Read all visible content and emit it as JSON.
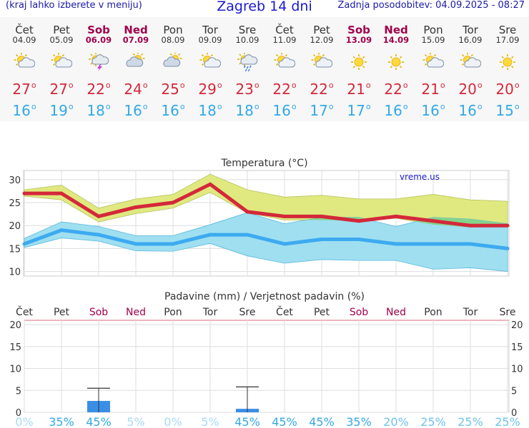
{
  "header": {
    "menu_hint": "(kraj lahko izberete v meniju)",
    "title": "Zagreb 14 dni",
    "updated": "Zadnja posodobitev: 04.09.2025 - 08:27"
  },
  "days": [
    {
      "name": "Čet",
      "date": "04.09",
      "weekend": false,
      "icon": "sun-cloud-icon",
      "tmax": "27",
      "tmin": "16"
    },
    {
      "name": "Pet",
      "date": "05.09",
      "weekend": false,
      "icon": "sun-cloud-icon",
      "tmax": "27",
      "tmin": "19"
    },
    {
      "name": "Sob",
      "date": "06.09",
      "weekend": true,
      "icon": "sun-cloud-thunder-icon",
      "tmax": "22",
      "tmin": "18"
    },
    {
      "name": "Ned",
      "date": "07.09",
      "weekend": true,
      "icon": "cloudy-sun-icon",
      "tmax": "24",
      "tmin": "16"
    },
    {
      "name": "Pon",
      "date": "08.09",
      "weekend": false,
      "icon": "cloudy-sun-icon",
      "tmax": "25",
      "tmin": "16"
    },
    {
      "name": "Tor",
      "date": "09.09",
      "weekend": false,
      "icon": "sun-cloud-icon",
      "tmax": "29",
      "tmin": "18"
    },
    {
      "name": "Sre",
      "date": "10.09",
      "weekend": false,
      "icon": "sun-cloud-rain-icon",
      "tmax": "23",
      "tmin": "18"
    },
    {
      "name": "Čet",
      "date": "11.09",
      "weekend": false,
      "icon": "sun-cloud-icon",
      "tmax": "22",
      "tmin": "16"
    },
    {
      "name": "Pet",
      "date": "12.09",
      "weekend": false,
      "icon": "sun-cloud-icon",
      "tmax": "22",
      "tmin": "17"
    },
    {
      "name": "Sob",
      "date": "13.09",
      "weekend": true,
      "icon": "sun-icon",
      "tmax": "21",
      "tmin": "17"
    },
    {
      "name": "Ned",
      "date": "14.09",
      "weekend": true,
      "icon": "sun-icon",
      "tmax": "22",
      "tmin": "16"
    },
    {
      "name": "Pon",
      "date": "15.09",
      "weekend": false,
      "icon": "sun-cloud-icon",
      "tmax": "21",
      "tmin": "16"
    },
    {
      "name": "Tor",
      "date": "16.09",
      "weekend": false,
      "icon": "sun-cloud-icon",
      "tmax": "20",
      "tmin": "16"
    },
    {
      "name": "Sre",
      "date": "17.09",
      "weekend": false,
      "icon": "sun-icon",
      "tmax": "20",
      "tmin": "15"
    }
  ],
  "chart_data": [
    {
      "type": "line",
      "title": "Temperatura (°C)",
      "watermark": "vreme.us",
      "categories": [
        "04.09",
        "05.09",
        "06.09",
        "07.09",
        "08.09",
        "09.09",
        "10.09",
        "11.09",
        "12.09",
        "13.09",
        "14.09",
        "15.09",
        "16.09",
        "17.09"
      ],
      "ylim": [
        9,
        32
      ],
      "yticks": [
        10,
        15,
        20,
        25,
        30
      ],
      "grid": true,
      "series": [
        {
          "values": [
            27,
            27,
            22,
            24,
            25,
            29,
            23,
            22,
            22,
            21,
            22,
            21,
            20,
            20
          ],
          "color": "#d4283a"
        },
        {
          "values": [
            16,
            19,
            18,
            16,
            16,
            18,
            18,
            16,
            17,
            17,
            16,
            16,
            16,
            15
          ],
          "color": "#3daaf0"
        }
      ],
      "bands": [
        {
          "upper": [
            27.8,
            28.8,
            23.8,
            25.8,
            26.8,
            31.2,
            27.8,
            26.2,
            26.6,
            25.8,
            25.8,
            26.8,
            25.6,
            25.3
          ],
          "lower": [
            26.4,
            25.6,
            20.8,
            22.6,
            23.8,
            27.2,
            22.8,
            21.2,
            21.2,
            21.0,
            21.6,
            20.2,
            19.6,
            19.8
          ],
          "color": "#dfe97f"
        },
        {
          "upper": [
            17.2,
            20.8,
            19.8,
            17.8,
            17.8,
            20.2,
            22.8,
            20.4,
            21.8,
            21.8,
            19.8,
            21.8,
            21.4,
            20.4
          ],
          "lower": [
            15.2,
            17.3,
            16.6,
            14.5,
            14.4,
            16.1,
            13.4,
            11.8,
            12.6,
            12.4,
            12.4,
            10.5,
            10.8,
            10.0
          ],
          "color": "#9fdff0"
        }
      ],
      "overlap_color": "#86d38a"
    },
    {
      "type": "bar",
      "title": "Padavine (mm) / Verjetnost padavin (%)",
      "categories": [
        "Čet",
        "Pet",
        "Sob",
        "Ned",
        "Pon",
        "Tor",
        "Sre",
        "Čet",
        "Pet",
        "Sob",
        "Ned",
        "Pon",
        "Tor",
        "Sre"
      ],
      "weekend": [
        false,
        false,
        true,
        true,
        false,
        false,
        false,
        false,
        false,
        true,
        true,
        false,
        false,
        false
      ],
      "ylim": [
        0,
        21
      ],
      "yticks": [
        0,
        5,
        10,
        15,
        20
      ],
      "bars": [
        {
          "index": 2,
          "value": 2.6,
          "error_top": 5.5
        },
        {
          "index": 6,
          "value": 0.8,
          "error_top": 5.8
        }
      ],
      "bar_color": "#3a8ee6",
      "probabilities": [
        "0%",
        "35%",
        "45%",
        "5%",
        "0%",
        "5%",
        "45%",
        "45%",
        "45%",
        "35%",
        "20%",
        "25%",
        "25%",
        "25%"
      ],
      "probability_levels": [
        0,
        35,
        45,
        5,
        0,
        5,
        45,
        45,
        45,
        35,
        20,
        25,
        25,
        25
      ]
    }
  ]
}
